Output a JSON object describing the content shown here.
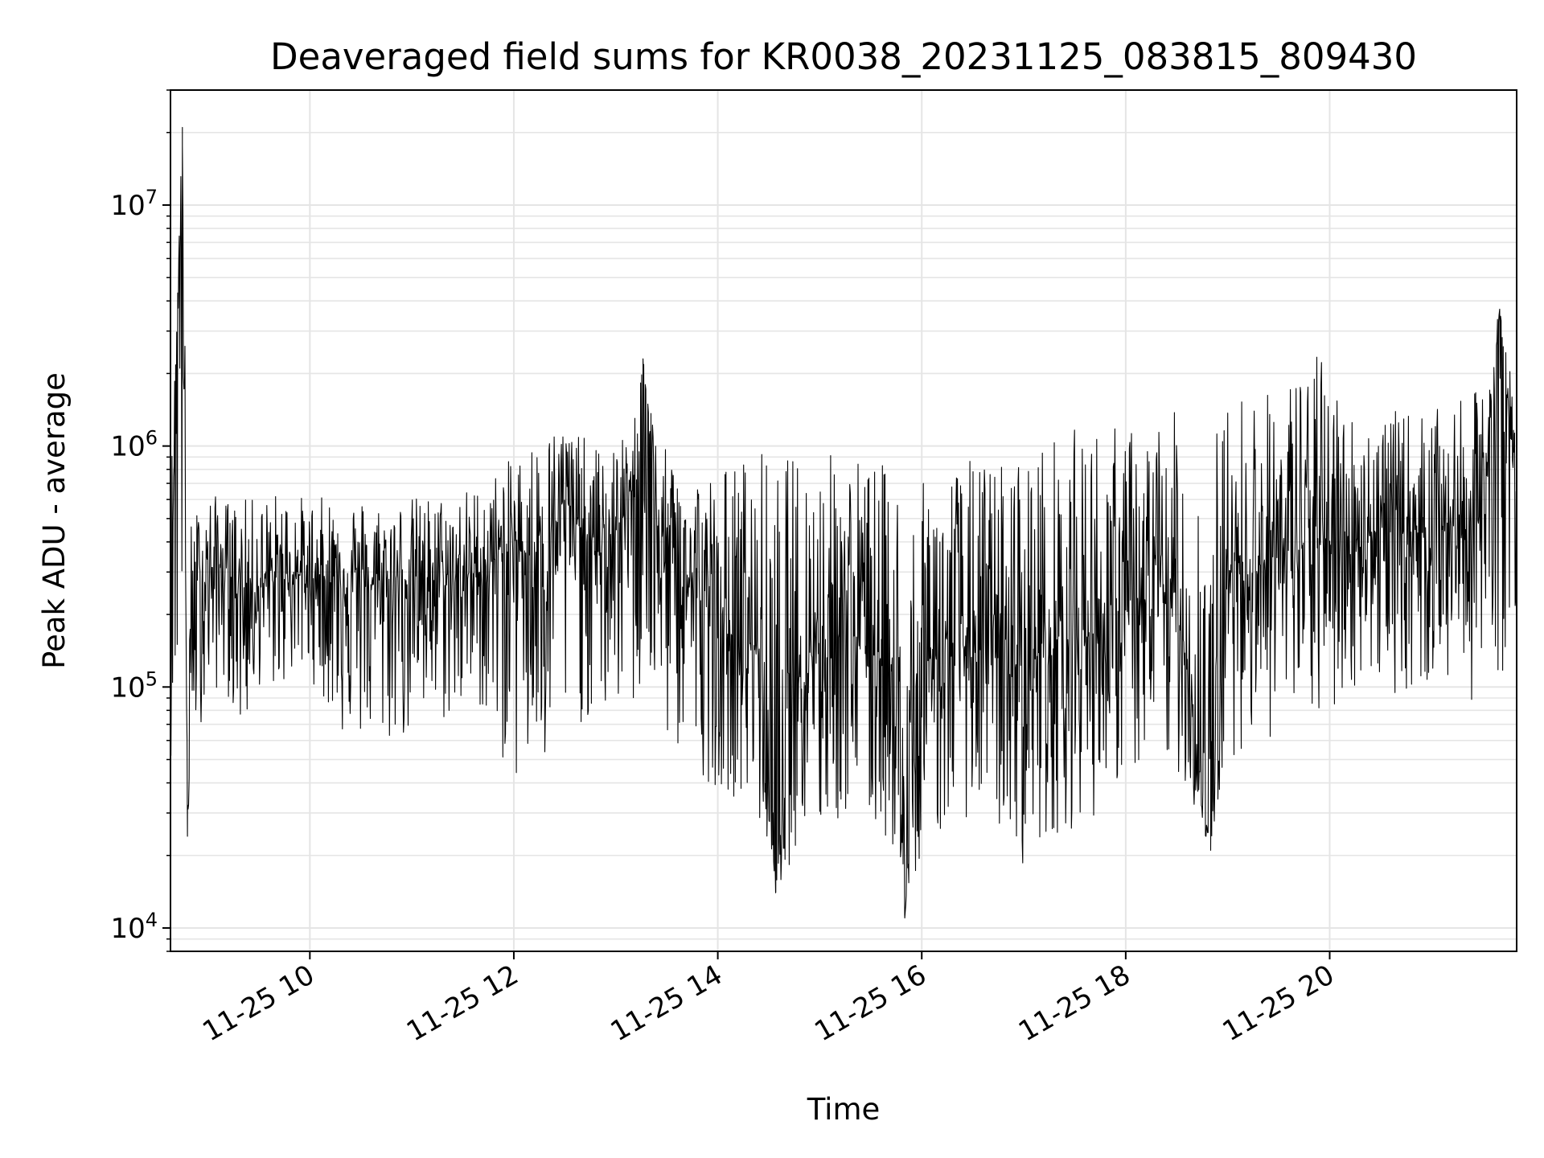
{
  "chart_data": {
    "type": "line",
    "title": "Deaveraged field sums for KR0038_20231125_083815_809430",
    "xlabel": "Time",
    "ylabel": "Peak ADU - average",
    "yscale": "log",
    "ylim": [
      8000,
      30000000
    ],
    "xlim": [
      "2023-11-25 08:38",
      "2023-11-25 21:50"
    ],
    "grid": true,
    "line_color": "#000000",
    "grid_color": "#e5e5e5",
    "x_ticks": [
      {
        "value": "2023-11-25 10:00",
        "label": "11-25 10"
      },
      {
        "value": "2023-11-25 12:00",
        "label": "11-25 12"
      },
      {
        "value": "2023-11-25 14:00",
        "label": "11-25 14"
      },
      {
        "value": "2023-11-25 16:00",
        "label": "11-25 16"
      },
      {
        "value": "2023-11-25 18:00",
        "label": "11-25 18"
      },
      {
        "value": "2023-11-25 20:00",
        "label": "11-25 20"
      }
    ],
    "y_ticks": [
      {
        "value": 10000,
        "base": "10",
        "exp": "4"
      },
      {
        "value": 100000,
        "base": "10",
        "exp": "5"
      },
      {
        "value": 1000000,
        "base": "10",
        "exp": "6"
      },
      {
        "value": 10000000,
        "base": "10",
        "exp": "7"
      }
    ],
    "series": [
      {
        "name": "",
        "x": [
          "2023-11-25 08:38",
          "2023-11-25 08:45",
          "2023-11-25 08:48",
          "2023-11-25 08:50",
          "2023-11-25 08:53",
          "2023-11-25 09:00",
          "2023-11-25 09:10",
          "2023-11-25 09:20",
          "2023-11-25 09:30",
          "2023-11-25 09:40",
          "2023-11-25 09:50",
          "2023-11-25 10:00",
          "2023-11-25 10:20",
          "2023-11-25 10:40",
          "2023-11-25 11:00",
          "2023-11-25 11:20",
          "2023-11-25 11:40",
          "2023-11-25 12:00",
          "2023-11-25 12:10",
          "2023-11-25 12:20",
          "2023-11-25 12:30",
          "2023-11-25 12:40",
          "2023-11-25 12:50",
          "2023-11-25 13:00",
          "2023-11-25 13:10",
          "2023-11-25 13:16",
          "2023-11-25 13:25",
          "2023-11-25 13:40",
          "2023-11-25 13:55",
          "2023-11-25 14:10",
          "2023-11-25 14:25",
          "2023-11-25 14:34",
          "2023-11-25 14:45",
          "2023-11-25 15:00",
          "2023-11-25 15:15",
          "2023-11-25 15:30",
          "2023-11-25 15:45",
          "2023-11-25 15:50",
          "2023-11-25 16:00",
          "2023-11-25 16:15",
          "2023-11-25 16:30",
          "2023-11-25 16:45",
          "2023-11-25 17:00",
          "2023-11-25 17:15",
          "2023-11-25 17:30",
          "2023-11-25 17:45",
          "2023-11-25 18:00",
          "2023-11-25 18:15",
          "2023-11-25 18:30",
          "2023-11-25 18:50",
          "2023-11-25 19:00",
          "2023-11-25 19:15",
          "2023-11-25 19:30",
          "2023-11-25 19:45",
          "2023-11-25 20:00",
          "2023-11-25 20:15",
          "2023-11-25 20:30",
          "2023-11-25 20:45",
          "2023-11-25 21:00",
          "2023-11-25 21:15",
          "2023-11-25 21:30",
          "2023-11-25 21:40",
          "2023-11-25 21:50"
        ],
        "y": [
          300000,
          21000000,
          24000,
          150000,
          250000,
          300000,
          320000,
          250000,
          260000,
          280000,
          300000,
          280000,
          300000,
          260000,
          290000,
          270000,
          300000,
          400000,
          350000,
          400000,
          600000,
          450000,
          350000,
          450000,
          600000,
          2300000,
          400000,
          300000,
          200000,
          150000,
          150000,
          14000,
          130000,
          160000,
          180000,
          150000,
          120000,
          11000,
          130000,
          140000,
          150000,
          130000,
          120000,
          150000,
          160000,
          170000,
          200000,
          220000,
          250000,
          21000,
          300000,
          320000,
          350000,
          380000,
          400000,
          420000,
          450000,
          430000,
          480000,
          460000,
          500000,
          3700000,
          550000
        ],
        "envelope_upper": [
          650000,
          21000000,
          450000,
          500000,
          550000,
          650000,
          600000,
          600000,
          620000,
          650000,
          650000,
          600000,
          650000,
          600000,
          620000,
          640000,
          700000,
          900000,
          1100000,
          1200000,
          1300000,
          1100000,
          1000000,
          1000000,
          1200000,
          2300000,
          1000000,
          900000,
          800000,
          900000,
          1000000,
          900000,
          950000,
          950000,
          1000000,
          900000,
          800000,
          900000,
          700000,
          850000,
          900000,
          900000,
          1000000,
          1100000,
          1200000,
          1300000,
          1200000,
          1300000,
          1400000,
          1200000,
          1500000,
          1900000,
          1600000,
          2600000,
          2300000,
          1300000,
          1400000,
          1400000,
          1400000,
          1500000,
          1800000,
          3700000,
          1500000
        ],
        "envelope_lower": [
          50000,
          90000,
          24000,
          45000,
          60000,
          90000,
          100000,
          60000,
          100000,
          95000,
          110000,
          110000,
          60000,
          55000,
          60000,
          70000,
          80000,
          38000,
          40000,
          38000,
          60000,
          70000,
          70000,
          80000,
          75000,
          80000,
          60000,
          50000,
          40000,
          35000,
          25000,
          14000,
          20000,
          22000,
          28000,
          25000,
          20000,
          11000,
          21000,
          25000,
          30000,
          25000,
          18000,
          24000,
          26000,
          30000,
          45000,
          40000,
          45000,
          21000,
          50000,
          60000,
          60000,
          70000,
          70000,
          100000,
          100000,
          90000,
          100000,
          100000,
          80000,
          100000,
          200000
        ]
      }
    ]
  }
}
